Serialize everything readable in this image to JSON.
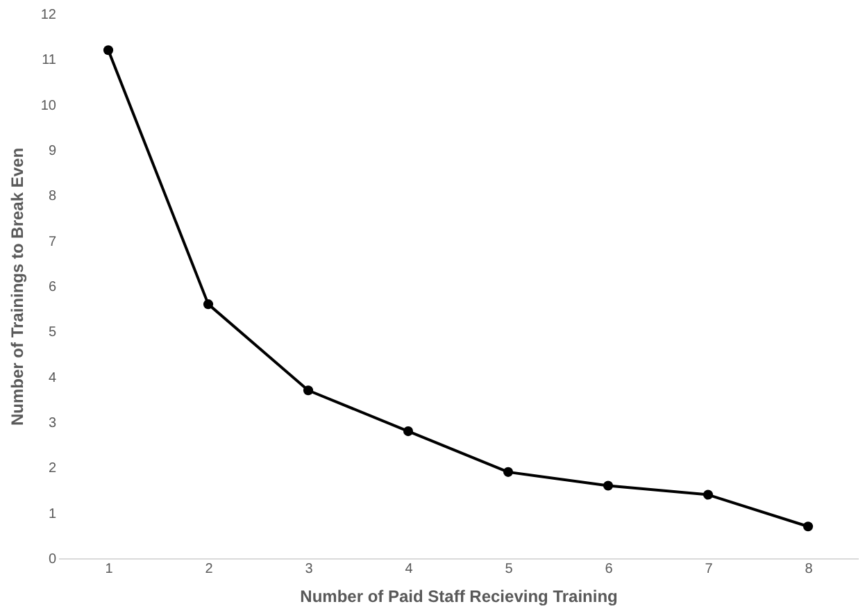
{
  "chart_data": {
    "type": "line",
    "xlabel": "Number of Paid Staff Recieving Training",
    "ylabel": "Number of Trainings to Break Even",
    "categories": [
      "1",
      "2",
      "3",
      "4",
      "5",
      "6",
      "7",
      "8"
    ],
    "series": [
      {
        "color": "#000000",
        "values": [
          11.2,
          5.6,
          3.7,
          2.8,
          1.9,
          1.6,
          1.4,
          0.7
        ]
      }
    ],
    "ylim": [
      0,
      12
    ],
    "yticks": [
      0,
      1,
      2,
      3,
      4,
      5,
      6,
      7,
      8,
      9,
      10,
      11,
      12
    ],
    "grid": false,
    "marker": "circle",
    "line_style": "solid",
    "legend": false
  }
}
